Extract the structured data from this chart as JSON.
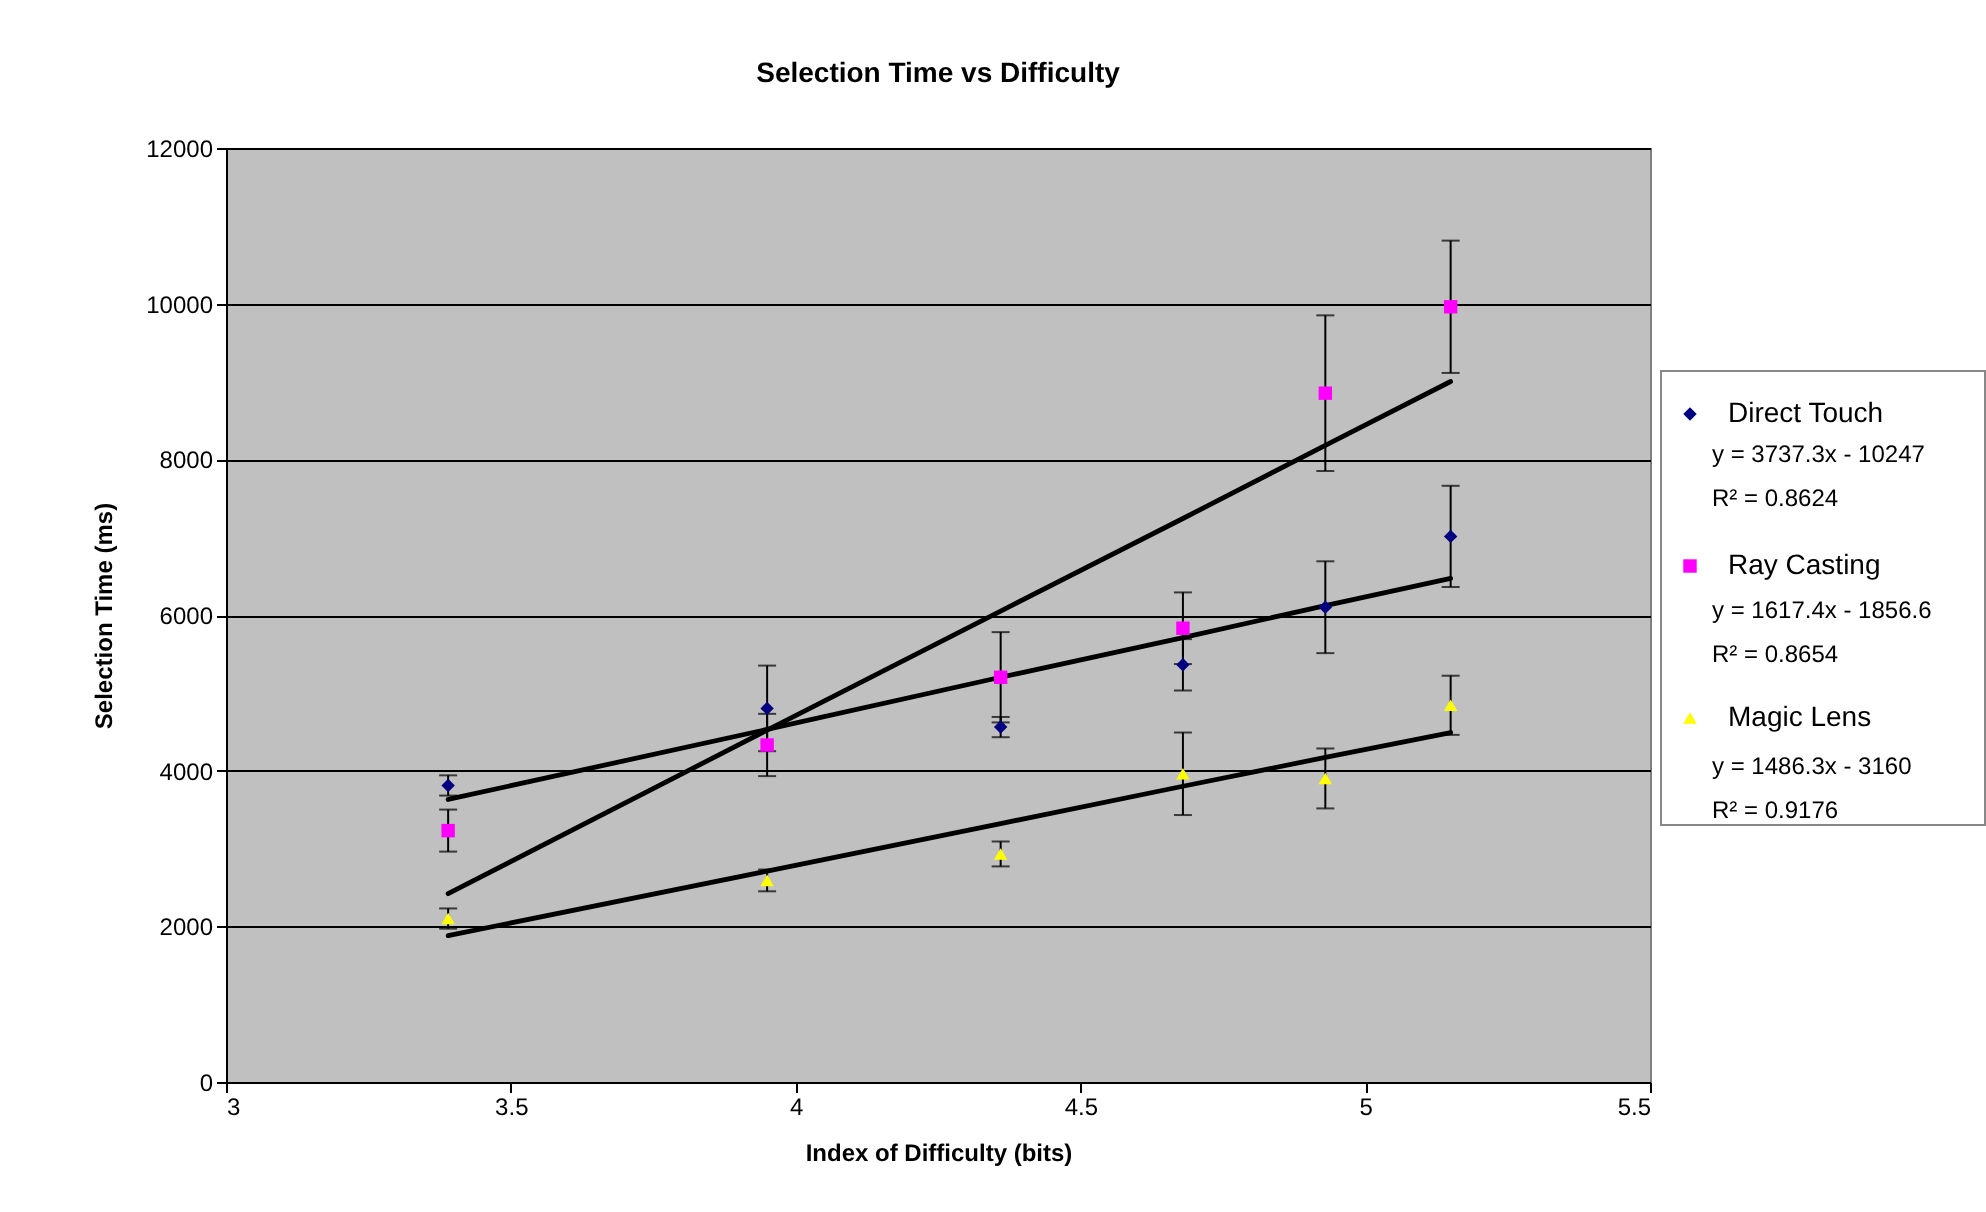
{
  "chart_data": {
    "type": "scatter",
    "title": "Selection Time vs Difficulty",
    "xlabel": "Index of Difficulty (bits)",
    "ylabel": "Selection Time (ms)",
    "xlim": [
      3,
      5.5
    ],
    "xticks": [
      3,
      3.5,
      4,
      4.5,
      5,
      5.5
    ],
    "ylim": [
      0,
      12000
    ],
    "yticks": [
      0,
      2000,
      4000,
      6000,
      8000,
      10000,
      12000
    ],
    "grid": "y",
    "legend": "right",
    "x": [
      3.39,
      3.95,
      4.36,
      4.68,
      4.93,
      5.15
    ],
    "series": [
      {
        "name": "Direct Touch",
        "marker": "diamond",
        "color": "#000080",
        "values": [
          3810,
          4800,
          4560,
          5360,
          6100,
          7010
        ],
        "errors": [
          130,
          550,
          130,
          330,
          590,
          650
        ]
      },
      {
        "name": "Ray Casting",
        "marker": "square",
        "color": "#ff00ff",
        "values": [
          3230,
          4330,
          5200,
          5830,
          8850,
          9960
        ],
        "errors": [
          270,
          400,
          580,
          460,
          1000,
          850
        ]
      },
      {
        "name": "Magic Lens",
        "marker": "triangle",
        "color": "#ffff00",
        "values": [
          2100,
          2590,
          2930,
          3960,
          3900,
          4840
        ],
        "errors": [
          130,
          140,
          160,
          530,
          385,
          380
        ]
      },
      {
        "type": "line",
        "color": "#000000",
        "values": [
          2420,
          4520,
          6050,
          7240,
          8180,
          9000
        ]
      },
      {
        "type": "line",
        "color": "#000000",
        "values": [
          3630,
          4530,
          5200,
          5710,
          6120,
          6470
        ]
      },
      {
        "type": "line",
        "color": "#000000",
        "values": [
          1880,
          2710,
          3320,
          3800,
          4170,
          4490
        ]
      }
    ],
    "annotations": [
      "y = 3737.3x - 10247",
      "R² = 0.8624",
      "y = 1617.4x - 1856.6",
      "R² = 0.8654",
      "y = 1486.3x - 3160",
      "R² = 0.9176"
    ]
  }
}
